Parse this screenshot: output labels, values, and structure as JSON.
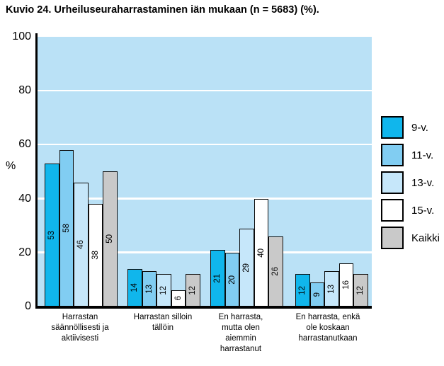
{
  "title": "Kuvio 24. Urheiluseuraharrastaminen iän mukaan (n = 5683) (%).",
  "chart_data": {
    "type": "bar",
    "title": "Kuvio 24. Urheiluseuraharrastaminen iän mukaan (n = 5683) (%).",
    "ylabel": "%",
    "ylim": [
      0,
      100
    ],
    "yticks": [
      0,
      20,
      40,
      60,
      80,
      100
    ],
    "grid": true,
    "legend_position": "right",
    "categories": [
      "Harrastan säännöllisesti ja aktiivisesti",
      "Harrastan silloin tällöin",
      "En harrasta, mutta olen aiemmin harrastanut",
      "En harrasta, enkä ole koskaan harrastanutkaan"
    ],
    "series": [
      {
        "name": "9-v.",
        "color": "#10b6ec",
        "values": [
          53,
          14,
          21,
          12
        ]
      },
      {
        "name": "11-v.",
        "color": "#81cdf2",
        "values": [
          58,
          13,
          20,
          9
        ]
      },
      {
        "name": "13-v.",
        "color": "#c6e7fa",
        "values": [
          46,
          12,
          29,
          13
        ]
      },
      {
        "name": "15-v.",
        "color": "#ffffff",
        "values": [
          38,
          6,
          40,
          16
        ]
      },
      {
        "name": "Kaikki",
        "color": "#c9c9c9",
        "values": [
          50,
          12,
          26,
          12
        ]
      }
    ],
    "bar_labels_shown": true,
    "colors": {
      "plot_background": "#bae1f6",
      "gridline": "#ffffff",
      "axis": "#000000",
      "bar_outline": "#0d0d0d",
      "text": "#000000"
    }
  }
}
